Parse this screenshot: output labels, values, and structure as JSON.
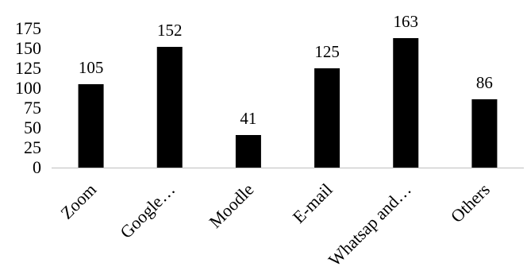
{
  "chart_data": {
    "type": "bar",
    "categories": [
      "Zoom",
      "Google…",
      "Moodle",
      "E-mail",
      "Whatsap and…",
      "Others"
    ],
    "values": [
      105,
      152,
      41,
      125,
      163,
      86
    ],
    "data_labels": [
      "105",
      "152",
      "41",
      "125",
      "163",
      "86"
    ],
    "title": "",
    "xlabel": "",
    "ylabel": "",
    "ylim": [
      0,
      175
    ],
    "yticks": [
      0,
      25,
      50,
      75,
      100,
      125,
      150,
      175
    ],
    "ytick_labels": [
      "0",
      "25",
      "50",
      "75",
      "100",
      "125",
      "150",
      "175"
    ],
    "grid": false,
    "legend": "none",
    "bar_color": "#000000",
    "axis_color": "#bfbfbf"
  }
}
